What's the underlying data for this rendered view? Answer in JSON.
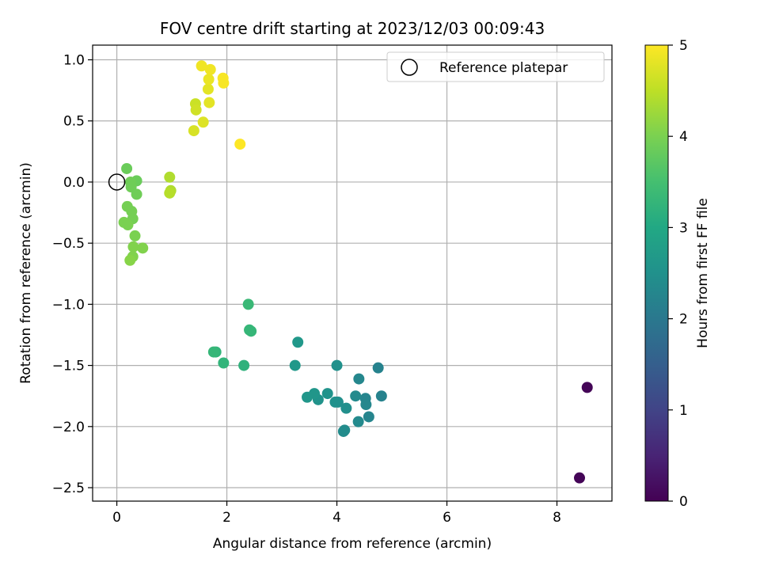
{
  "chart_data": {
    "type": "scatter",
    "title": "FOV centre drift starting at 2023/12/03 00:09:43",
    "xlabel": "Angular distance from reference (arcmin)",
    "ylabel": "Rotation from reference (arcmin)",
    "xlim": [
      -0.44,
      9.0
    ],
    "ylim": [
      -2.61,
      1.12
    ],
    "xticks": [
      0,
      2,
      4,
      6,
      8
    ],
    "xtick_labels": [
      "0",
      "2",
      "4",
      "6",
      "8"
    ],
    "yticks": [
      1.0,
      0.5,
      0.0,
      -0.5,
      -1.0,
      -1.5,
      -2.0,
      -2.5
    ],
    "ytick_labels": [
      "1.0",
      "0.5",
      "0.0",
      "−0.5",
      "−1.0",
      "−1.5",
      "−2.0",
      "−2.5"
    ],
    "grid": true,
    "legend": {
      "position": "top-right",
      "entries": [
        {
          "label": "Reference platepar",
          "marker": "open-circle"
        }
      ]
    },
    "reference_point": {
      "x": 0,
      "y": 0
    },
    "colorbar": {
      "label": "Hours from first FF file",
      "colormap": "viridis",
      "range": [
        0,
        5
      ],
      "ticks": [
        0,
        1,
        2,
        3,
        4,
        5
      ],
      "tick_labels": [
        "0",
        "1",
        "2",
        "3",
        "4",
        "5"
      ]
    },
    "points": [
      {
        "x": 8.55,
        "y": -1.68,
        "c": 0.05
      },
      {
        "x": 8.41,
        "y": -2.42,
        "c": 0.05
      },
      {
        "x": 4.75,
        "y": -1.52,
        "c": 2.2
      },
      {
        "x": 4.81,
        "y": -1.75,
        "c": 2.2
      },
      {
        "x": 4.58,
        "y": -1.92,
        "c": 2.25
      },
      {
        "x": 4.52,
        "y": -1.77,
        "c": 2.25
      },
      {
        "x": 4.53,
        "y": -1.82,
        "c": 2.3
      },
      {
        "x": 4.4,
        "y": -1.61,
        "c": 2.3
      },
      {
        "x": 4.34,
        "y": -1.75,
        "c": 2.35
      },
      {
        "x": 4.39,
        "y": -1.96,
        "c": 2.35
      },
      {
        "x": 4.14,
        "y": -2.03,
        "c": 2.4
      },
      {
        "x": 4.12,
        "y": -2.04,
        "c": 2.4
      },
      {
        "x": 4.17,
        "y": -1.85,
        "c": 2.45
      },
      {
        "x": 4.02,
        "y": -1.8,
        "c": 2.45
      },
      {
        "x": 3.97,
        "y": -1.8,
        "c": 2.5
      },
      {
        "x": 4.0,
        "y": -1.5,
        "c": 2.5
      },
      {
        "x": 3.83,
        "y": -1.73,
        "c": 2.55
      },
      {
        "x": 3.66,
        "y": -1.78,
        "c": 2.55
      },
      {
        "x": 3.59,
        "y": -1.73,
        "c": 2.6
      },
      {
        "x": 3.46,
        "y": -1.76,
        "c": 2.6
      },
      {
        "x": 3.29,
        "y": -1.31,
        "c": 2.65
      },
      {
        "x": 3.24,
        "y": -1.5,
        "c": 2.65
      },
      {
        "x": 2.31,
        "y": -1.5,
        "c": 3.2
      },
      {
        "x": 1.94,
        "y": -1.48,
        "c": 3.25
      },
      {
        "x": 1.8,
        "y": -1.39,
        "c": 3.25
      },
      {
        "x": 1.76,
        "y": -1.39,
        "c": 3.3
      },
      {
        "x": 2.44,
        "y": -1.22,
        "c": 3.3
      },
      {
        "x": 2.41,
        "y": -1.21,
        "c": 3.3
      },
      {
        "x": 2.39,
        "y": -1.0,
        "c": 3.35
      },
      {
        "x": 0.18,
        "y": 0.11,
        "c": 3.85
      },
      {
        "x": 0.36,
        "y": 0.01,
        "c": 3.85
      },
      {
        "x": 0.25,
        "y": 0.0,
        "c": 3.9
      },
      {
        "x": 0.26,
        "y": -0.04,
        "c": 3.9
      },
      {
        "x": 0.36,
        "y": -0.1,
        "c": 3.9
      },
      {
        "x": 0.19,
        "y": -0.2,
        "c": 3.95
      },
      {
        "x": 0.27,
        "y": -0.24,
        "c": 3.95
      },
      {
        "x": 0.29,
        "y": -0.3,
        "c": 3.95
      },
      {
        "x": 0.13,
        "y": -0.33,
        "c": 4.0
      },
      {
        "x": 0.2,
        "y": -0.35,
        "c": 4.0
      },
      {
        "x": 0.33,
        "y": -0.44,
        "c": 4.0
      },
      {
        "x": 0.3,
        "y": -0.53,
        "c": 4.05
      },
      {
        "x": 0.47,
        "y": -0.54,
        "c": 4.05
      },
      {
        "x": 0.29,
        "y": -0.61,
        "c": 4.05
      },
      {
        "x": 0.24,
        "y": -0.64,
        "c": 4.1
      },
      {
        "x": 0.96,
        "y": 0.04,
        "c": 4.4
      },
      {
        "x": 0.98,
        "y": -0.07,
        "c": 4.4
      },
      {
        "x": 0.96,
        "y": -0.09,
        "c": 4.45
      },
      {
        "x": 1.43,
        "y": 0.64,
        "c": 4.6
      },
      {
        "x": 1.44,
        "y": 0.59,
        "c": 4.65
      },
      {
        "x": 1.4,
        "y": 0.42,
        "c": 4.7
      },
      {
        "x": 1.57,
        "y": 0.49,
        "c": 4.75
      },
      {
        "x": 1.68,
        "y": 0.65,
        "c": 4.8
      },
      {
        "x": 1.66,
        "y": 0.76,
        "c": 4.8
      },
      {
        "x": 1.67,
        "y": 0.84,
        "c": 4.85
      },
      {
        "x": 1.7,
        "y": 0.92,
        "c": 4.9
      },
      {
        "x": 1.54,
        "y": 0.95,
        "c": 4.9
      },
      {
        "x": 1.93,
        "y": 0.85,
        "c": 4.95
      },
      {
        "x": 1.94,
        "y": 0.81,
        "c": 4.95
      },
      {
        "x": 2.24,
        "y": 0.31,
        "c": 5.0
      }
    ]
  }
}
